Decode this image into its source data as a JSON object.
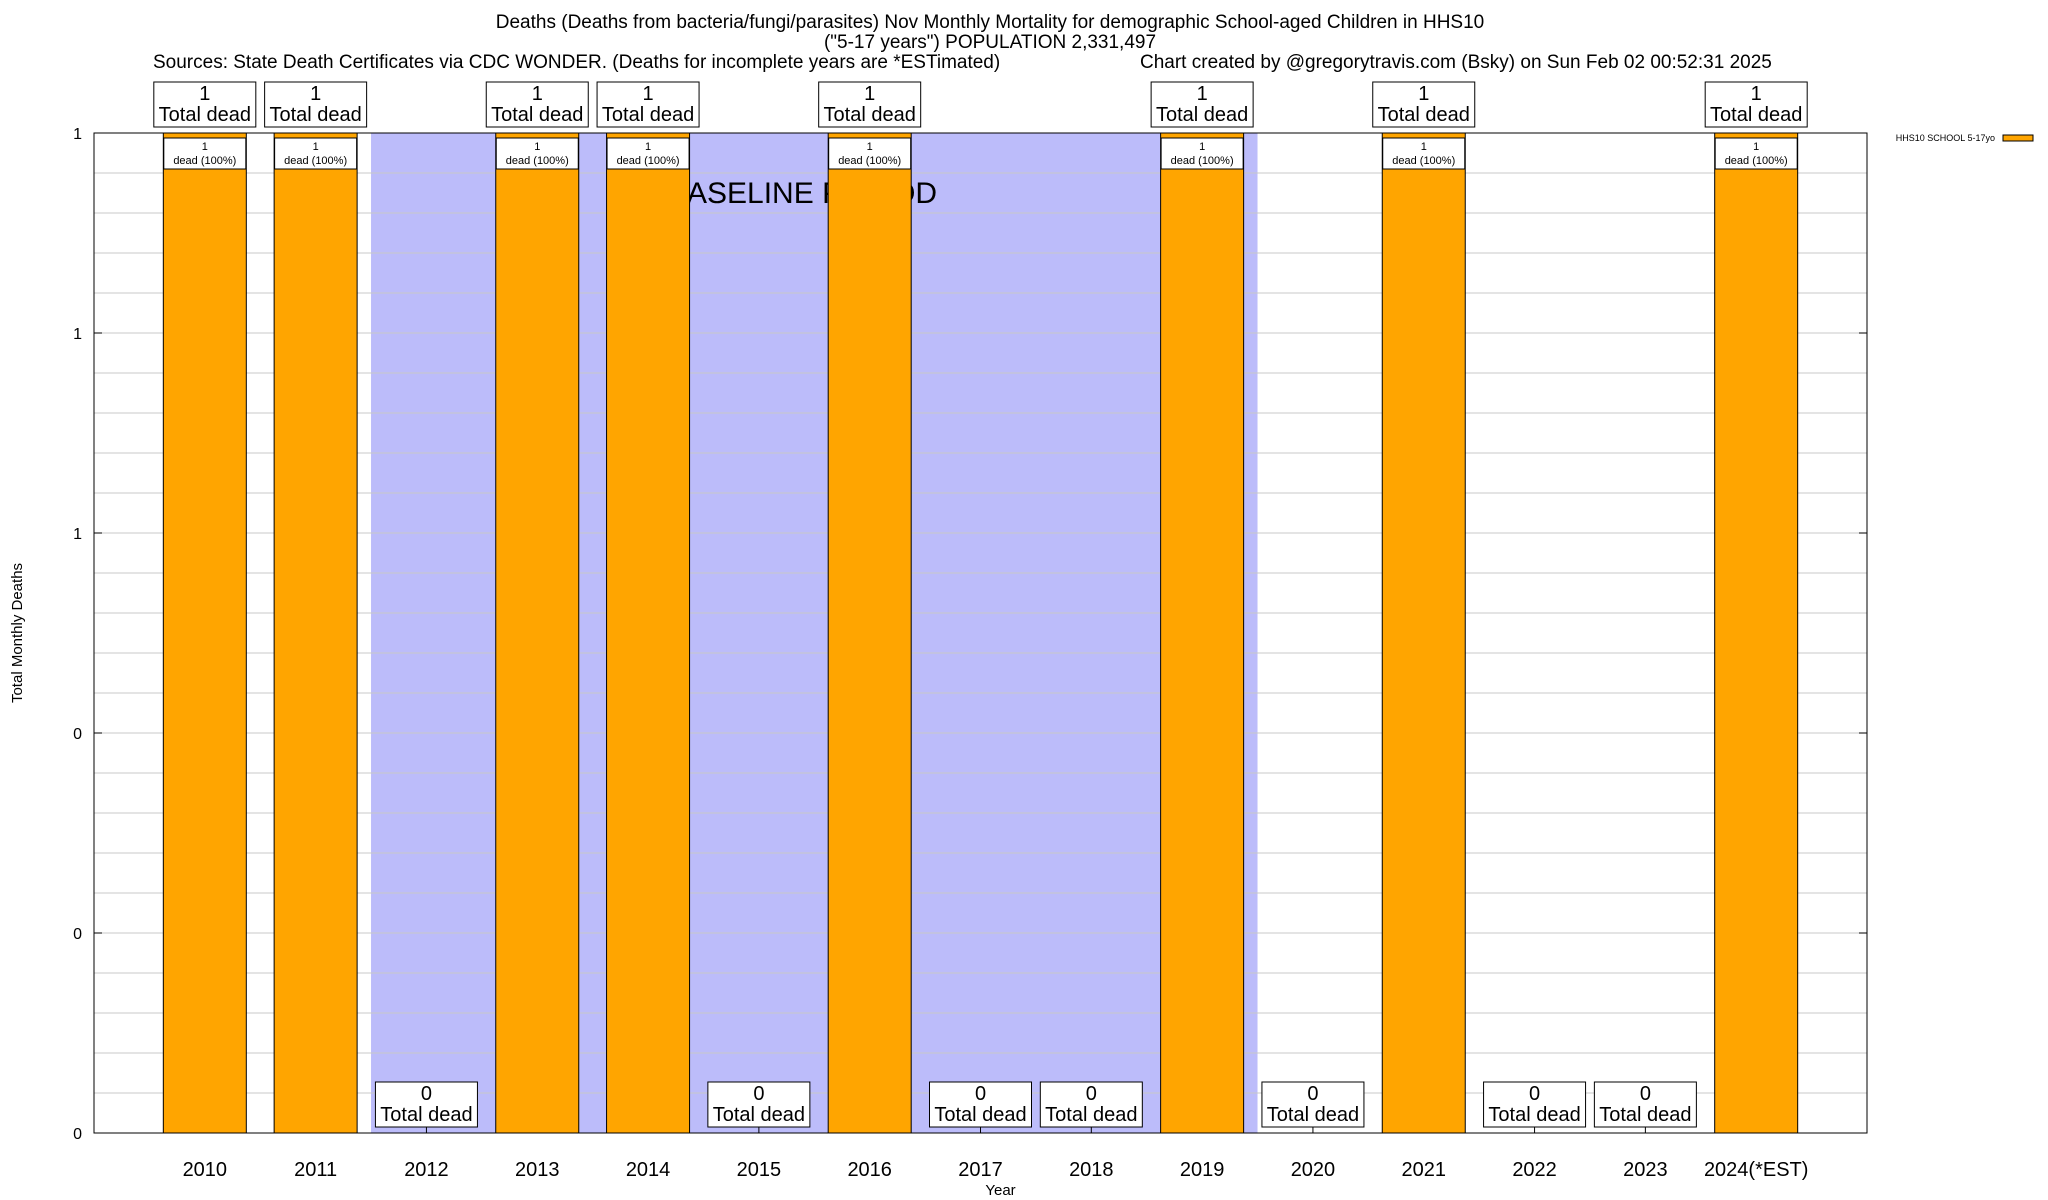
{
  "header": {
    "title_line1": "Deaths (Deaths from bacteria/fungi/parasites) Nov Monthly Mortality for demographic School-aged Children in HHS10",
    "title_line2": "(\"5-17 years\") POPULATION 2,331,497",
    "sources": "Sources: State Death Certificates via CDC WONDER. (Deaths for incomplete years are *ESTimated)",
    "credit": "Chart created by @gregorytravis.com (Bsky) on Sun Feb 02 00:52:31 2025"
  },
  "chart_data": {
    "type": "bar",
    "xlabel": "Year",
    "ylabel": "Total Monthly Deaths",
    "categories": [
      "2010",
      "2011",
      "2012",
      "2013",
      "2014",
      "2015",
      "2016",
      "2017",
      "2018",
      "2019",
      "2020",
      "2021",
      "2022",
      "2023",
      "2024(*EST)"
    ],
    "series": [
      {
        "name": "HHS10 SCHOOL 5-17yo",
        "values": [
          1,
          1,
          0,
          1,
          1,
          0,
          1,
          0,
          0,
          1,
          0,
          1,
          0,
          0,
          1
        ],
        "color": "#ffa500"
      }
    ],
    "ylim": [
      0,
      1
    ],
    "ytick_labels": [
      "0",
      "0",
      "0",
      "1",
      "1",
      "1"
    ],
    "bar_top_labels": [
      "1",
      "1",
      "0",
      "1",
      "1",
      "0",
      "1",
      "0",
      "0",
      "1",
      "0",
      "1",
      "0",
      "0",
      "1"
    ],
    "total_dead_label": "Total dead",
    "inner_labels": [
      "1\ndead (100%)",
      "1\ndead (100%)",
      "",
      "1\ndead (100%)",
      "1\ndead (100%)",
      "",
      "1\ndead (100%)",
      "",
      "",
      "1\ndead (100%)",
      "",
      "1\ndead (100%)",
      "",
      "",
      "1\ndead (100%)"
    ],
    "baseline_period": {
      "label": "BASELINE PERIOD",
      "from": "2012",
      "to": "2019",
      "color": "#bcbcfa"
    },
    "grid": true,
    "legend_position": "top-right"
  }
}
